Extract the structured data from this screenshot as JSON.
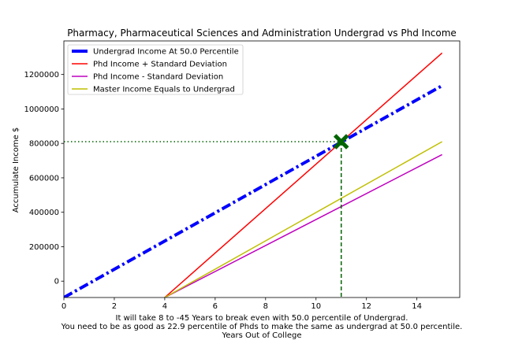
{
  "chart_data": {
    "type": "line",
    "title": "Pharmacy, Pharmaceutical Sciences and Administration Undergrad vs Phd Income",
    "xlabel_lines": [
      "It will take 8 to -45 Years to break even with 50.0 percentile of Undergrad.",
      "You need to be as good as 22.9 percentile of Phds to make the same as undergrad at 50.0 percentile.",
      "Years Out of College"
    ],
    "ylabel": "Accumulate Income $",
    "xlim": [
      0,
      15.7
    ],
    "ylim": [
      -95000,
      1395000
    ],
    "xticks": [
      0,
      2,
      4,
      6,
      8,
      10,
      12,
      14
    ],
    "yticks": [
      0,
      200000,
      400000,
      600000,
      800000,
      1000000,
      1200000
    ],
    "legend_position": "upper-left",
    "series": [
      {
        "name": "Undergrad Income At 50.0 Percentile",
        "x": [
          0,
          15
        ],
        "y": [
          -95000,
          1135000
        ],
        "color": "#0000ff",
        "style": "dashdot",
        "width": 4
      },
      {
        "name": "Phd Income + Standard Deviation",
        "x": [
          4,
          15
        ],
        "y": [
          -95000,
          1325000
        ],
        "color": "#ff0000",
        "style": "solid",
        "width": 1.5
      },
      {
        "name": "Phd Income - Standard Deviation",
        "x": [
          4,
          15
        ],
        "y": [
          -95000,
          735000
        ],
        "color": "#bf00bf",
        "style": "solid",
        "width": 1.5
      },
      {
        "name": "Master Income Equals to Undergrad",
        "x": [
          4,
          15
        ],
        "y": [
          -95000,
          810000
        ],
        "color": "#bfbf00",
        "style": "solid",
        "width": 1.5
      }
    ],
    "marker": {
      "x": 11,
      "y": 810000,
      "color": "#006400",
      "symbol": "X"
    },
    "guides": {
      "color": "#006400",
      "horizontal_style": "dotted",
      "vertical_style": "dashed"
    }
  }
}
